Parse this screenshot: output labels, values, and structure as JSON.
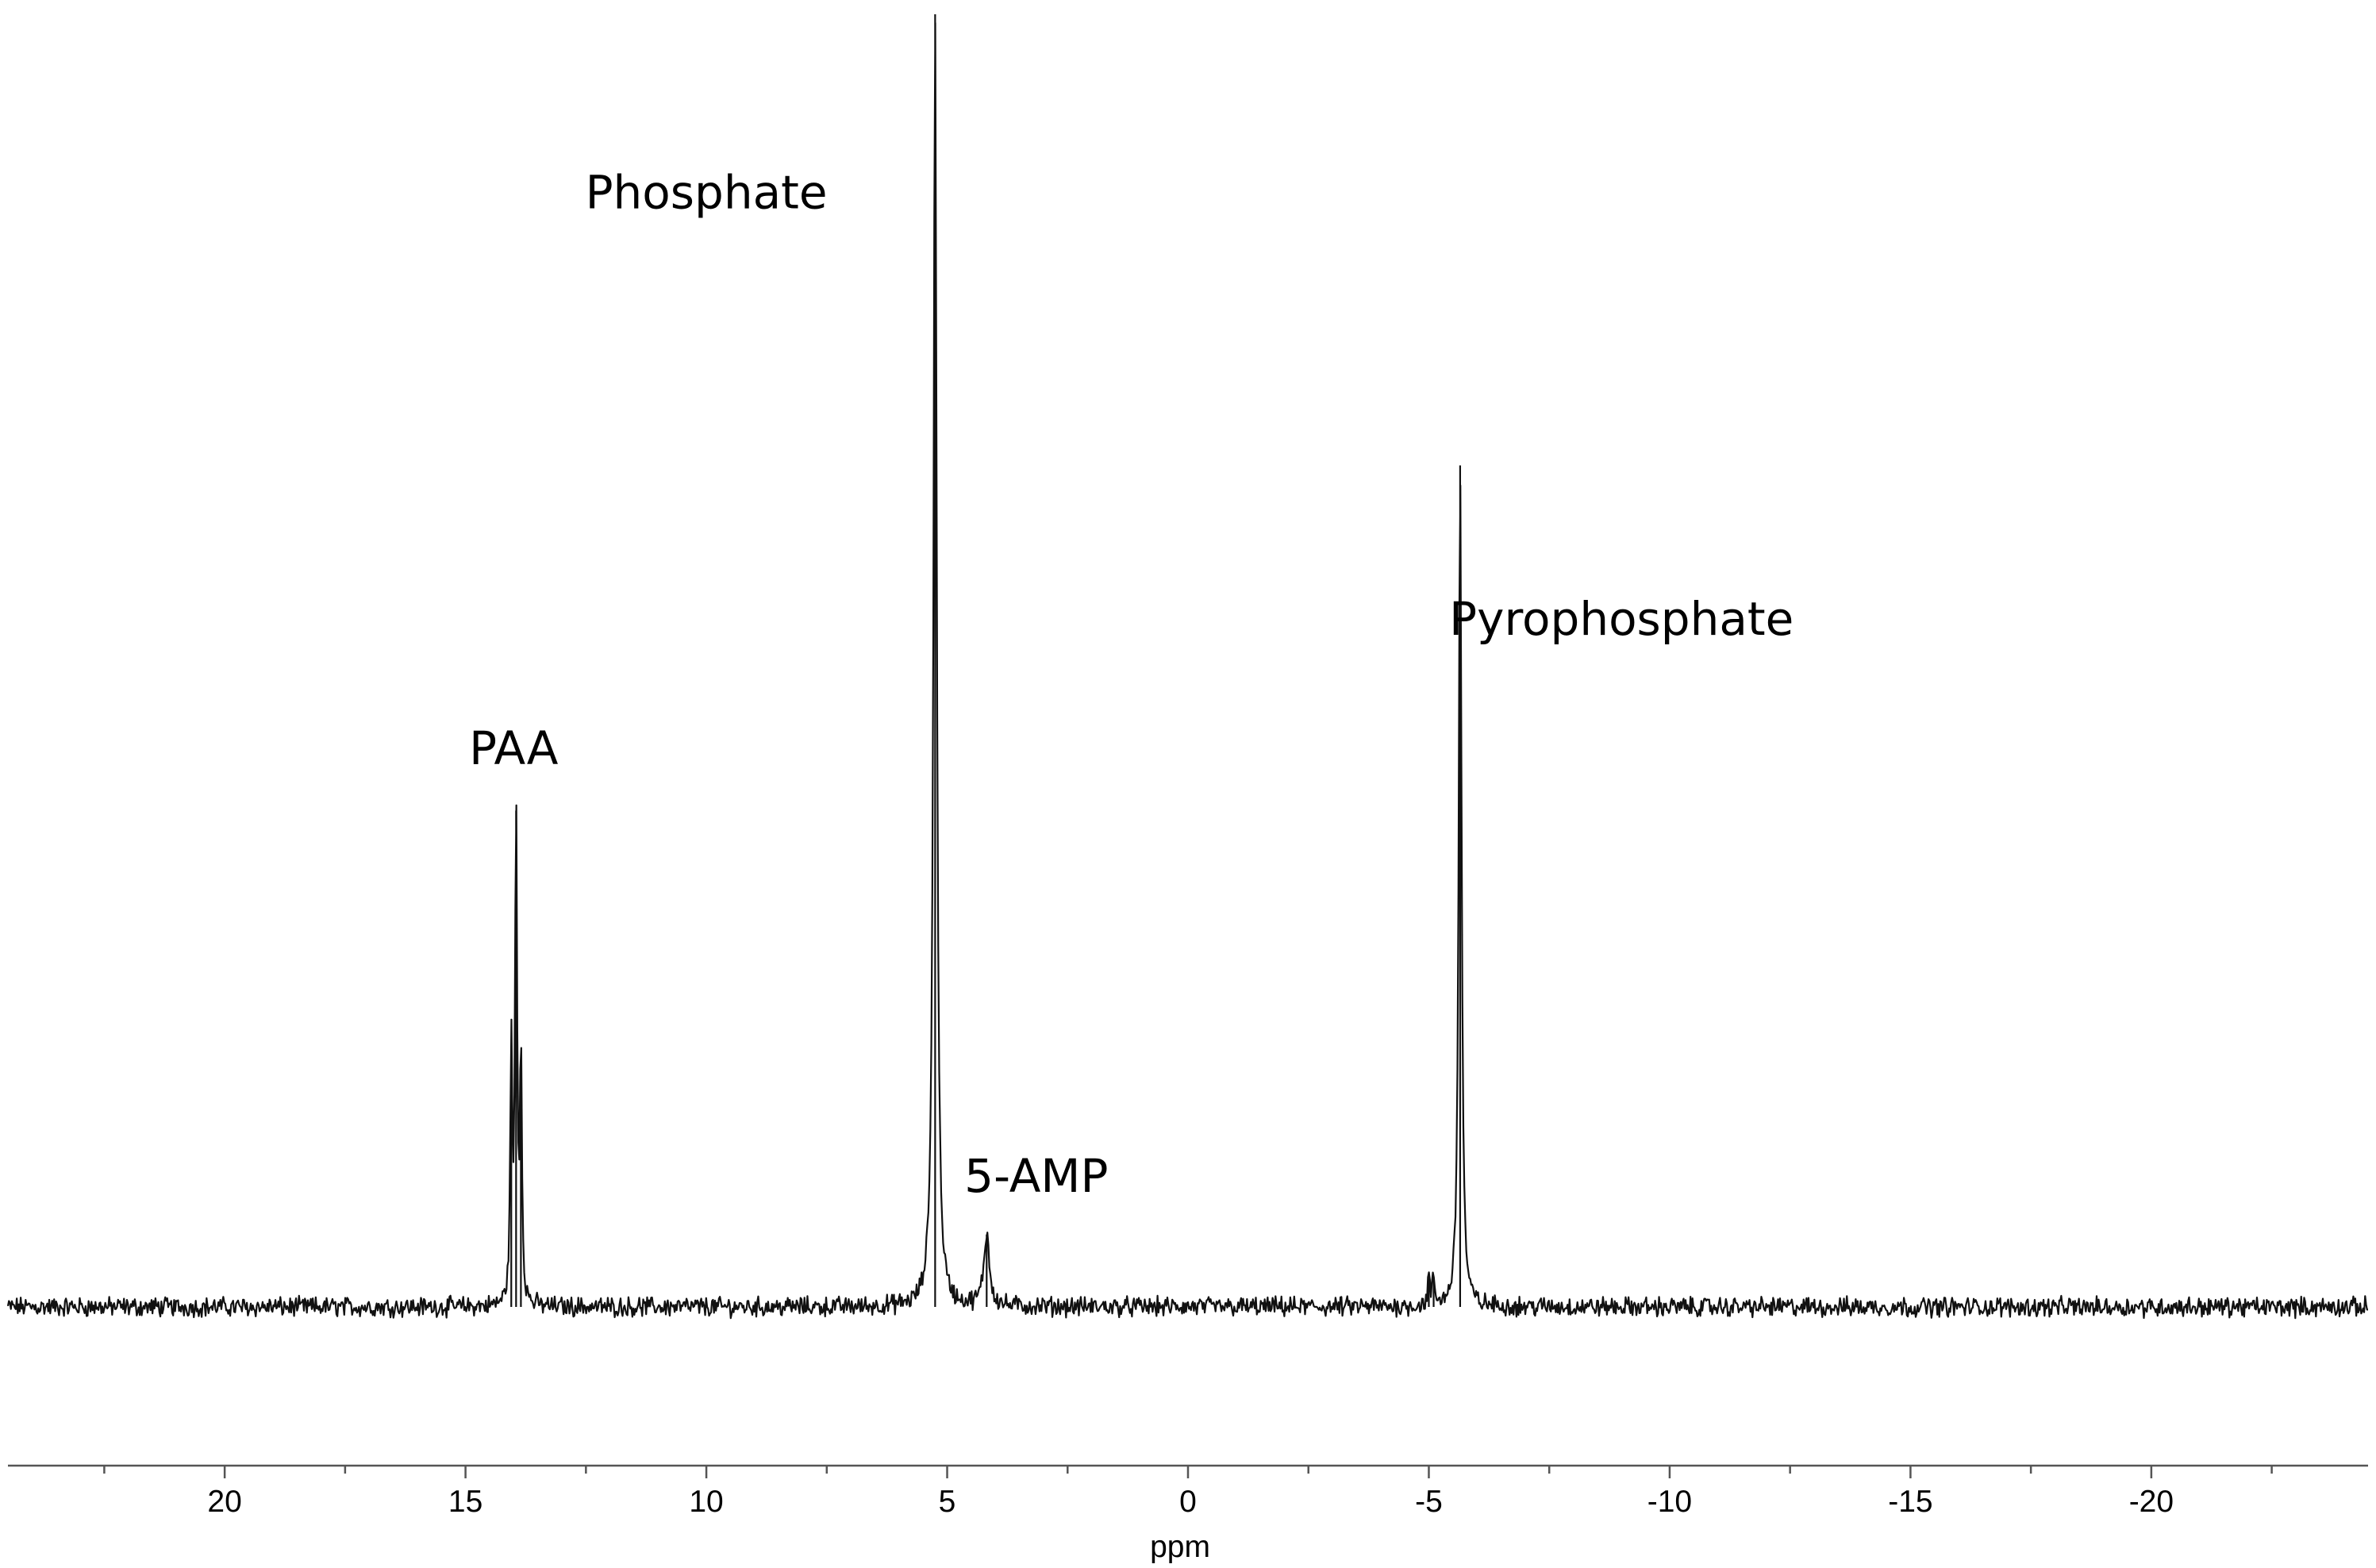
{
  "chart_data": {
    "type": "line",
    "title": "",
    "xlabel": "ppm",
    "ylabel": "",
    "x_reversed": true,
    "xlim": [
      24.5,
      -24.5
    ],
    "ylim": [
      -0.15,
      1.0
    ],
    "grid": false,
    "legend": "none",
    "line_color": "#111111",
    "x_ticks": [
      20,
      15,
      10,
      5,
      0,
      -5,
      -10,
      -15,
      -20
    ],
    "x_tick_labels": [
      "20",
      "15",
      "10",
      "5",
      "0",
      "-5",
      "-10",
      "-15",
      "-20"
    ],
    "peaks": [
      {
        "ppm": 14.05,
        "height": 0.195,
        "width": 0.025
      },
      {
        "ppm": 13.95,
        "height": 0.384,
        "width": 0.025
      },
      {
        "ppm": 13.85,
        "height": 0.193,
        "width": 0.025
      },
      {
        "ppm": 5.25,
        "height": 1.0,
        "width": 0.04
      },
      {
        "ppm": 4.18,
        "height": 0.056,
        "width": 0.07
      },
      {
        "ppm": -5.0,
        "height": 0.022,
        "width": 0.025
      },
      {
        "ppm": -5.1,
        "height": 0.022,
        "width": 0.025
      },
      {
        "ppm": -5.65,
        "height": 0.651,
        "width": 0.035
      }
    ],
    "annotations": [
      {
        "text": "PAA",
        "ppm": 14.0,
        "y": 0.42
      },
      {
        "text": "Phosphate",
        "ppm": 10.0,
        "y": 0.85
      },
      {
        "text": "5-AMP",
        "ppm": 3.15,
        "y": 0.089
      },
      {
        "text": "Pyrophosphate",
        "ppm": -9.0,
        "y": 0.52
      }
    ]
  }
}
